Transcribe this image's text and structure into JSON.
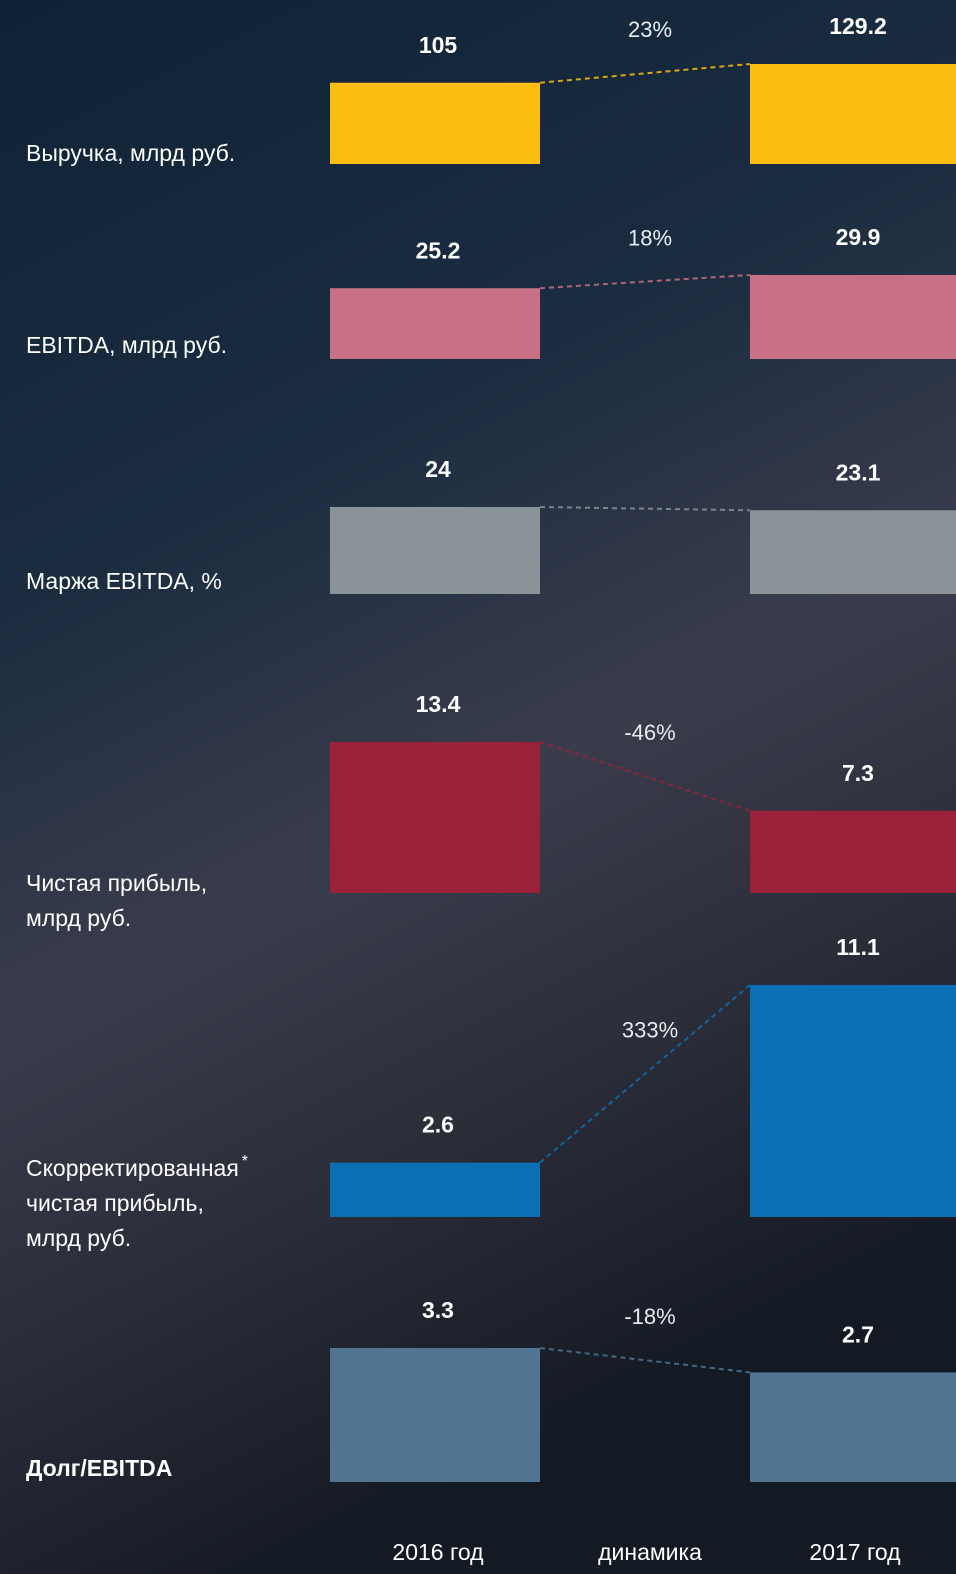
{
  "chart_data": {
    "type": "paired-bar",
    "columns": [
      "2016 год",
      "динамика",
      "2017 год"
    ],
    "rows": [
      {
        "label": [
          "Выручка, млрд руб."
        ],
        "values": [
          105,
          129.2
        ],
        "change": "23%",
        "color": "#fbbd0f"
      },
      {
        "label": [
          "EBITDA, млрд руб."
        ],
        "values": [
          25.2,
          29.9
        ],
        "change": "18%",
        "color": "#c87184"
      },
      {
        "label": [
          "Маржа EBITDA, %"
        ],
        "values": [
          24,
          23.1
        ],
        "change": null,
        "color": "#8a9398"
      },
      {
        "label": [
          "Чистая прибыль,",
          "млрд руб."
        ],
        "values": [
          13.4,
          7.3
        ],
        "change": "-46%",
        "color": "#9a2139"
      },
      {
        "label": [
          "Скорректированная",
          "чистая прибыль,",
          "млрд руб."
        ],
        "footnote": "*",
        "values": [
          2.6,
          11.1
        ],
        "change": "333%",
        "color": "#0b6fb6"
      },
      {
        "label": [
          "Долг/EBITDA"
        ],
        "values": [
          3.3,
          2.7
        ],
        "change": "-18%",
        "color": "#4f7593",
        "bold": true
      }
    ]
  }
}
